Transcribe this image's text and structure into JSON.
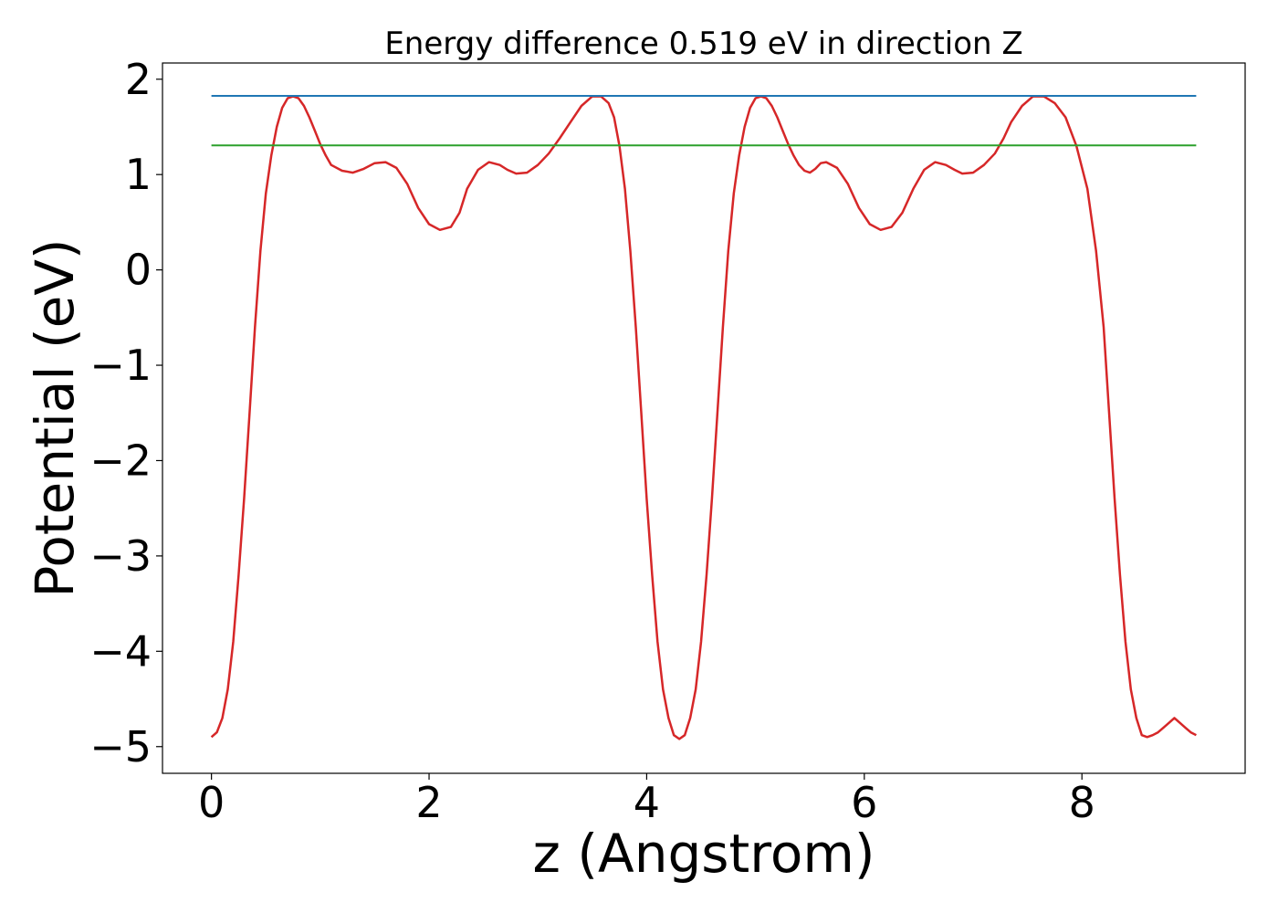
{
  "chart_data": {
    "type": "line",
    "title": "Energy difference 0.519 eV in direction Z",
    "xlabel": "z (Angstrom)",
    "ylabel": "Potential (eV)",
    "xlim": [
      -0.45,
      9.5
    ],
    "ylim": [
      -5.28,
      2.17
    ],
    "xticks": [
      0,
      2,
      4,
      6,
      8
    ],
    "xtick_labels": [
      "0",
      "2",
      "4",
      "6",
      "8"
    ],
    "yticks": [
      -5,
      -4,
      -3,
      -2,
      -1,
      0,
      1,
      2
    ],
    "ytick_labels": [
      "−5",
      "−4",
      "−3",
      "−2",
      "−1",
      "0",
      "1",
      "2"
    ],
    "grid": false,
    "series": [
      {
        "color": "#d62728",
        "style": "line",
        "x": [
          0.0,
          0.05,
          0.1,
          0.15,
          0.2,
          0.25,
          0.3,
          0.35,
          0.4,
          0.45,
          0.5,
          0.55,
          0.6,
          0.65,
          0.7,
          0.75,
          0.8,
          0.85,
          0.9,
          0.95,
          1.0,
          1.05,
          1.1,
          1.2,
          1.3,
          1.4,
          1.5,
          1.6,
          1.7,
          1.8,
          1.9,
          2.0,
          2.1,
          2.2,
          2.28,
          2.35,
          2.45,
          2.55,
          2.65,
          2.72,
          2.8,
          2.9,
          3.0,
          3.1,
          3.2,
          3.3,
          3.4,
          3.5,
          3.58,
          3.65,
          3.7,
          3.75,
          3.8,
          3.85,
          3.9,
          3.95,
          4.0,
          4.05,
          4.1,
          4.15,
          4.2,
          4.25,
          4.3,
          4.35,
          4.4,
          4.45,
          4.5,
          4.55,
          4.6,
          4.65,
          4.7,
          4.75,
          4.8,
          4.85,
          4.9,
          4.95,
          5.0,
          5.05,
          5.1,
          5.15,
          5.2,
          5.25,
          5.3,
          5.35,
          5.4,
          5.45,
          5.5,
          5.55,
          5.6,
          5.65,
          5.75,
          5.85,
          5.95,
          6.05,
          6.15,
          6.25,
          6.35,
          6.45,
          6.55,
          6.65,
          6.75,
          6.83,
          6.9,
          7.0,
          7.1,
          7.2,
          7.28,
          7.35,
          7.45,
          7.55,
          7.65,
          7.75,
          7.85,
          7.95,
          8.05,
          8.13,
          8.2,
          8.25,
          8.3,
          8.35,
          8.4,
          8.45,
          8.5,
          8.55,
          8.6,
          8.65,
          8.7,
          8.75,
          8.8,
          8.85,
          8.9,
          8.95,
          9.0,
          9.05
        ],
        "y": [
          -4.9,
          -4.85,
          -4.7,
          -4.4,
          -3.9,
          -3.2,
          -2.4,
          -1.5,
          -0.6,
          0.2,
          0.8,
          1.2,
          1.5,
          1.7,
          1.8,
          1.82,
          1.8,
          1.72,
          1.6,
          1.46,
          1.32,
          1.2,
          1.1,
          1.04,
          1.02,
          1.06,
          1.12,
          1.13,
          1.07,
          0.9,
          0.65,
          0.48,
          0.42,
          0.45,
          0.6,
          0.85,
          1.05,
          1.13,
          1.1,
          1.05,
          1.01,
          1.02,
          1.1,
          1.22,
          1.38,
          1.55,
          1.72,
          1.82,
          1.82,
          1.75,
          1.6,
          1.3,
          0.85,
          0.2,
          -0.6,
          -1.5,
          -2.4,
          -3.2,
          -3.9,
          -4.4,
          -4.7,
          -4.88,
          -4.92,
          -4.88,
          -4.7,
          -4.4,
          -3.9,
          -3.2,
          -2.4,
          -1.5,
          -0.6,
          0.2,
          0.8,
          1.2,
          1.5,
          1.7,
          1.8,
          1.82,
          1.8,
          1.72,
          1.6,
          1.46,
          1.32,
          1.2,
          1.1,
          1.04,
          1.02,
          1.06,
          1.12,
          1.13,
          1.07,
          0.9,
          0.65,
          0.48,
          0.42,
          0.45,
          0.6,
          0.85,
          1.05,
          1.13,
          1.1,
          1.05,
          1.01,
          1.02,
          1.1,
          1.22,
          1.38,
          1.55,
          1.72,
          1.82,
          1.82,
          1.75,
          1.6,
          1.3,
          0.85,
          0.2,
          -0.6,
          -1.5,
          -2.4,
          -3.2,
          -3.9,
          -4.4,
          -4.7,
          -4.88,
          -4.9,
          -4.88,
          -4.85,
          -4.8,
          -4.75,
          -4.7,
          -4.75,
          -4.8,
          -4.85,
          -4.88
        ]
      },
      {
        "color": "#1f77b4",
        "style": "hline",
        "x": [
          0.0,
          9.05
        ],
        "y": [
          1.825,
          1.825
        ]
      },
      {
        "color": "#2ca02c",
        "style": "hline",
        "x": [
          0.0,
          9.05
        ],
        "y": [
          1.306,
          1.306
        ]
      }
    ]
  }
}
